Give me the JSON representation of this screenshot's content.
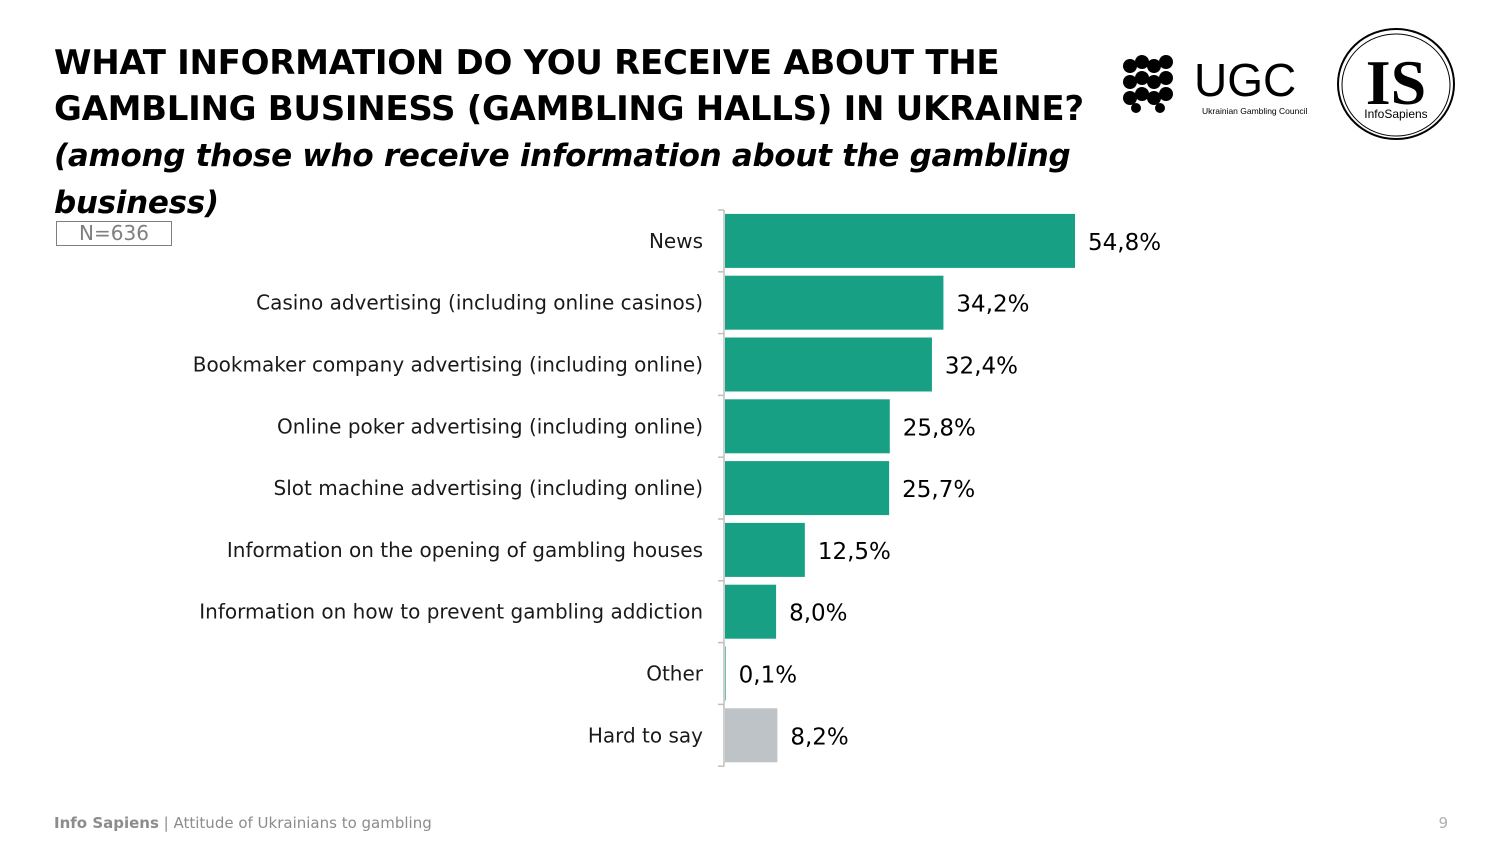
{
  "title": {
    "main": "WHAT INFORMATION DO YOU RECEIVE ABOUT THE GAMBLING BUSINESS (GAMBLING HALLS) IN UKRAINE?",
    "sub": "(among those who receive information about the gambling business)"
  },
  "sample_size": "N=636",
  "logos": {
    "ugc_name": "UGC",
    "ugc_tagline": "Ukrainian Gambling Council",
    "is_mark": "IS",
    "is_name": "InfoSapiens"
  },
  "footer": {
    "brand": "Info Sapiens",
    "separator": " | ",
    "text": "Attitude of Ukrainians to gambling",
    "page_number": "9"
  },
  "colors": {
    "bar_primary": "#18a085",
    "bar_other": "#bdc3c7",
    "axis": "#bfbfbf"
  },
  "chart_data": {
    "type": "bar",
    "orientation": "horizontal",
    "categories": [
      "News",
      "Casino advertising (including online casinos)",
      "Bookmaker company advertising (including online)",
      "Online poker advertising (including online) ",
      "Slot machine advertising (including online) ",
      "Information on the opening of gambling houses",
      "Information on how to prevent gambling addiction",
      "Other",
      "Hard to say"
    ],
    "values": [
      54.8,
      34.2,
      32.4,
      25.8,
      25.7,
      12.5,
      8.0,
      0.1,
      8.2
    ],
    "value_labels": [
      "54,8%",
      "34,2%",
      "32,4%",
      "25,8%",
      "25,7%",
      "12,5%",
      "8,0%",
      "0,1%",
      "8,2%"
    ],
    "bar_colors": [
      "#18a085",
      "#18a085",
      "#18a085",
      "#18a085",
      "#18a085",
      "#18a085",
      "#18a085",
      "#18a085",
      "#bdc3c7"
    ],
    "xlim": [
      0,
      100
    ],
    "grid": false,
    "legend": false
  }
}
